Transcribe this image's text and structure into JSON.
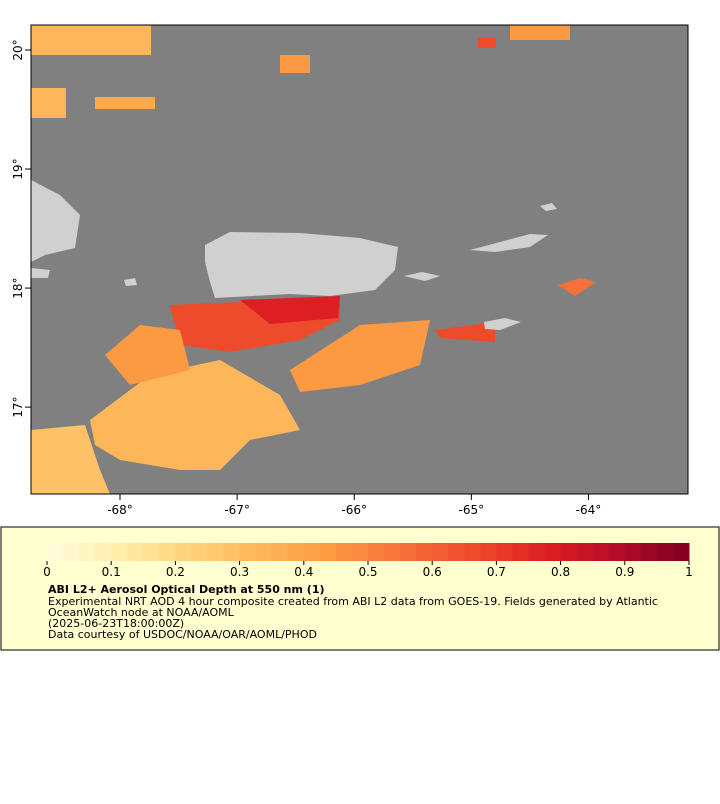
{
  "map": {
    "xlim": [
      -68.76,
      -63.15
    ],
    "ylim": [
      16.27,
      20.21
    ],
    "xticks": [
      {
        "value": -68,
        "label": "-68°"
      },
      {
        "value": -67,
        "label": "-67°"
      },
      {
        "value": -66,
        "label": "-66°"
      },
      {
        "value": -65,
        "label": "-65°"
      },
      {
        "value": -64,
        "label": "-64°"
      }
    ],
    "yticks": [
      {
        "value": 17,
        "label": "17°"
      },
      {
        "value": 18,
        "label": "18°"
      },
      {
        "value": 19,
        "label": "19°"
      },
      {
        "value": 20,
        "label": "20°"
      }
    ]
  },
  "colorbar": {
    "lim": [
      0,
      1
    ],
    "ticks": [
      0,
      0.1,
      0.2,
      0.3,
      0.4,
      0.5,
      0.6,
      0.7,
      0.8,
      0.9,
      1
    ],
    "colors": [
      "#fffde0",
      "#feeeaa",
      "#fdd27a",
      "#fdb659",
      "#fb9a42",
      "#f7703a",
      "#ee4a2c",
      "#dc1f22",
      "#b50c2a",
      "#7f0021"
    ]
  },
  "caption": {
    "title": "ABI L2+ Aerosol Optical Depth at 550 nm (1)",
    "lines": [
      "Experimental NRT AOD 4 hour composite created from ABI L2 data from GOES-19. Fields generated by Atlantic",
      "OceanWatch node at NOAA/AOML",
      "(2025-06-23T18:00:00Z)",
      "Data courtesy of USDOC/NOAA/OAR/AOML/PHOD"
    ]
  }
}
